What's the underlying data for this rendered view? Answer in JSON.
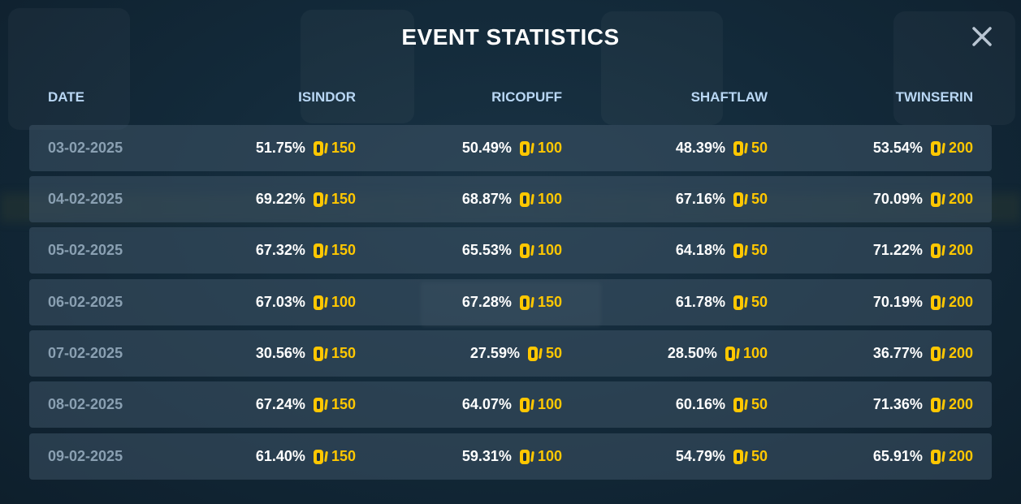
{
  "modal": {
    "title": "EVENT STATISTICS",
    "close_icon": "close-icon"
  },
  "table": {
    "headers": [
      "DATE",
      "ISINDOR",
      "RICOPUFF",
      "SHAFTLAW",
      "TWINSERIN"
    ],
    "rows": [
      {
        "date": "03-02-2025",
        "cells": [
          {
            "pct": "51.75%",
            "amount": "150"
          },
          {
            "pct": "50.49%",
            "amount": "100"
          },
          {
            "pct": "48.39%",
            "amount": "50"
          },
          {
            "pct": "53.54%",
            "amount": "200"
          }
        ]
      },
      {
        "date": "04-02-2025",
        "cells": [
          {
            "pct": "69.22%",
            "amount": "150"
          },
          {
            "pct": "68.87%",
            "amount": "100"
          },
          {
            "pct": "67.16%",
            "amount": "50"
          },
          {
            "pct": "70.09%",
            "amount": "200"
          }
        ]
      },
      {
        "date": "05-02-2025",
        "cells": [
          {
            "pct": "67.32%",
            "amount": "150"
          },
          {
            "pct": "65.53%",
            "amount": "100"
          },
          {
            "pct": "64.18%",
            "amount": "50"
          },
          {
            "pct": "71.22%",
            "amount": "200"
          }
        ]
      },
      {
        "date": "06-02-2025",
        "cells": [
          {
            "pct": "67.03%",
            "amount": "100"
          },
          {
            "pct": "67.28%",
            "amount": "150"
          },
          {
            "pct": "61.78%",
            "amount": "50"
          },
          {
            "pct": "70.19%",
            "amount": "200"
          }
        ]
      },
      {
        "date": "07-02-2025",
        "cells": [
          {
            "pct": "30.56%",
            "amount": "150"
          },
          {
            "pct": "27.59%",
            "amount": "50"
          },
          {
            "pct": "28.50%",
            "amount": "100"
          },
          {
            "pct": "36.77%",
            "amount": "200"
          }
        ]
      },
      {
        "date": "08-02-2025",
        "cells": [
          {
            "pct": "67.24%",
            "amount": "150"
          },
          {
            "pct": "64.07%",
            "amount": "100"
          },
          {
            "pct": "60.16%",
            "amount": "50"
          },
          {
            "pct": "71.36%",
            "amount": "200"
          }
        ]
      },
      {
        "date": "09-02-2025",
        "cells": [
          {
            "pct": "61.40%",
            "amount": "150"
          },
          {
            "pct": "59.31%",
            "amount": "100"
          },
          {
            "pct": "54.79%",
            "amount": "50"
          },
          {
            "pct": "65.91%",
            "amount": "200"
          }
        ]
      }
    ],
    "currency_icon": "coin-icon"
  },
  "colors": {
    "accent_gold": "#ffc700",
    "header_text": "#b9d7f4",
    "date_text": "#8aa0b2"
  }
}
